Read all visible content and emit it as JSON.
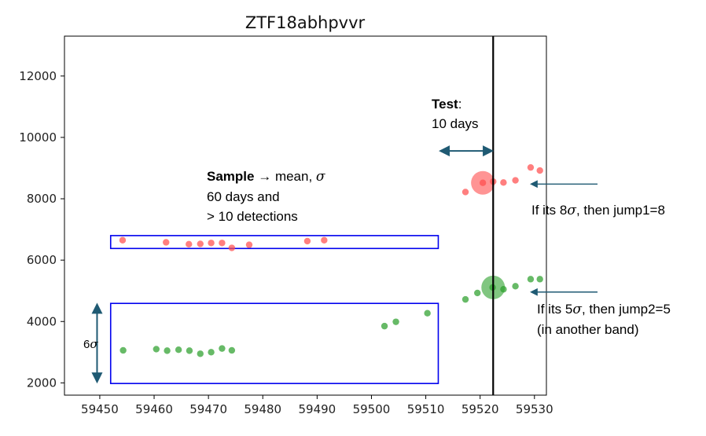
{
  "chart_data": {
    "type": "scatter",
    "title": "ZTF18abhpvvr",
    "xlim": [
      59443.5,
      59532.2
    ],
    "ylim": [
      1600,
      13300
    ],
    "xticks": [
      59450,
      59460,
      59470,
      59480,
      59490,
      59500,
      59510,
      59520,
      59530
    ],
    "yticks": [
      2000,
      4000,
      6000,
      8000,
      10000,
      12000
    ],
    "grid": false,
    "series": [
      {
        "color": "#ff4d4d",
        "x": [
          59454.2,
          59462.2,
          59466.4,
          59468.5,
          59470.5,
          59472.5,
          59474.3,
          59477.5,
          59488.2,
          59491.3,
          59517.3,
          59520.5,
          59522.4,
          59524.3,
          59526.5,
          59529.3,
          59531.0
        ],
        "y": [
          6650,
          6580,
          6520,
          6530,
          6560,
          6560,
          6400,
          6500,
          6620,
          6650,
          8220,
          8520,
          8560,
          8530,
          8600,
          9020,
          8920
        ]
      },
      {
        "color": "#2ca02c",
        "x": [
          59454.3,
          59460.4,
          59462.4,
          59464.5,
          59466.5,
          59468.5,
          59470.5,
          59472.5,
          59474.3,
          59502.4,
          59504.5,
          59510.3,
          59517.3,
          59519.5,
          59522.3,
          59524.3,
          59526.5,
          59529.3,
          59531.0
        ],
        "y": [
          3060,
          3100,
          3050,
          3080,
          3050,
          2950,
          3000,
          3120,
          3060,
          3850,
          3990,
          4270,
          4720,
          4930,
          5110,
          5050,
          5150,
          5380,
          5380
        ]
      }
    ],
    "highlights": [
      {
        "x": 59520.5,
        "y": 8520,
        "color": "#ff4d4d"
      },
      {
        "x": 59522.4,
        "y": 5110,
        "color": "#2ca02c"
      }
    ],
    "test_line_x": 59522.4,
    "sample_boxes": [
      {
        "x": [
          59452,
          59512.3
        ],
        "y": [
          6380,
          6800
        ]
      },
      {
        "x": [
          59452,
          59512.3
        ],
        "y": [
          1980,
          4590
        ]
      }
    ],
    "box_color": "#0000ee",
    "arrow_color": "#1f5a73",
    "test_arrow_range": [
      59512.5,
      59522.4
    ],
    "test_arrow_y": 9560,
    "sigma_arrow": {
      "x": 59449.5,
      "y": [
        2000,
        4590
      ]
    }
  },
  "annotations": {
    "sample_bold": "Sample",
    "sample_arrow": "→",
    "sample_rest": " mean, ",
    "sigma_symbol": "σ",
    "sample_line2": "60 days and",
    "sample_line3": "> 10 detections",
    "test_bold": "Test",
    "test_colon": ":",
    "test_line2": "10 days",
    "six_sigma_num": "6",
    "jump1_pre": "If its 8",
    "jump1_post": ", then jump1=8",
    "jump2_pre": "If its 5",
    "jump2_post": ", then jump2=5",
    "jump2_line2": "(in another band)"
  }
}
